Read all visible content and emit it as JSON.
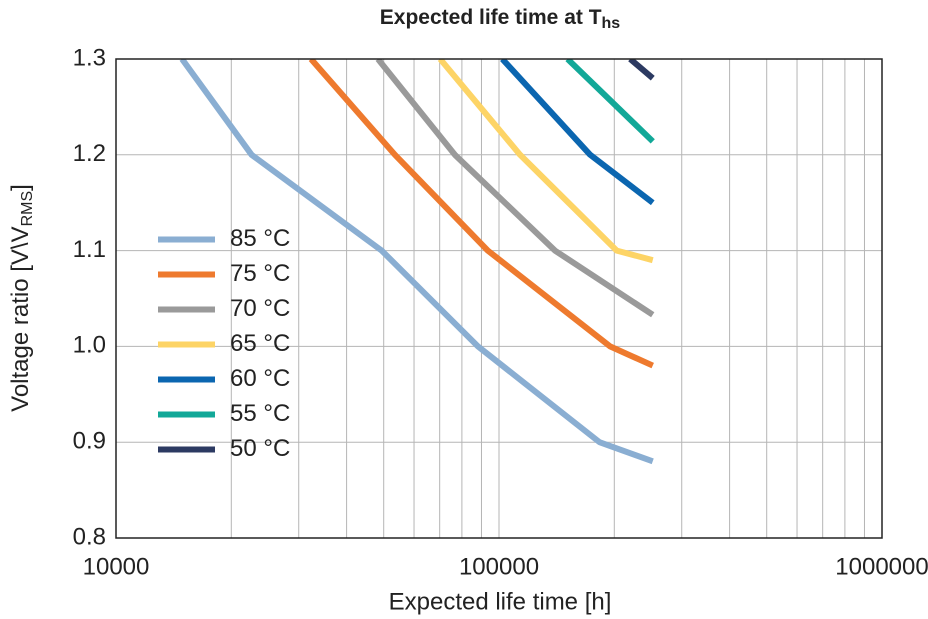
{
  "chart_data": {
    "type": "line",
    "title": "Expected life time at T",
    "title_subscript": "hs",
    "xlabel": "Expected life time [h]",
    "ylabel": "Voltage ratio [V\\V",
    "ylabel_subscript": "RMS",
    "ylabel_end": "]",
    "xscale": "log",
    "xlim": [
      10000,
      1000000
    ],
    "xticks": [
      10000,
      100000,
      1000000
    ],
    "xminor_grid": [
      20000,
      30000,
      40000,
      50000,
      60000,
      70000,
      80000,
      90000,
      200000,
      300000,
      400000,
      500000,
      600000,
      700000,
      800000,
      900000
    ],
    "ylim": [
      0.8,
      1.3
    ],
    "yticks": [
      0.8,
      0.9,
      {
        "value": 1,
        "label": "1.0"
      },
      1.1,
      1.2,
      1.3
    ],
    "grid": true,
    "legend": "center left",
    "series": [
      {
        "name": "85 °C",
        "color": "#8aaed2",
        "x": [
          14870,
          22600,
          49400,
          88100,
          183000,
          252000
        ],
        "values": [
          1.3,
          1.2,
          1.1,
          1.0,
          0.9,
          0.88
        ]
      },
      {
        "name": "75 °C",
        "color": "#ee7a2e",
        "x": [
          32300,
          53500,
          93500,
          195000,
          252000
        ],
        "values": [
          1.3,
          1.2,
          1.1,
          1.0,
          0.98
        ]
      },
      {
        "name": "70 °C",
        "color": "#9a9a9a",
        "x": [
          48300,
          76700,
          140000,
          252000
        ],
        "values": [
          1.3,
          1.2,
          1.1,
          1.033
        ]
      },
      {
        "name": "65 °C",
        "color": "#fdd466",
        "x": [
          70200,
          113500,
          203000,
          252000
        ],
        "values": [
          1.3,
          1.2,
          1.1,
          1.09
        ]
      },
      {
        "name": "60 °C",
        "color": "#0b66b0",
        "x": [
          102000,
          173000,
          252000
        ],
        "values": [
          1.3,
          1.2,
          1.15
        ]
      },
      {
        "name": "55 °C",
        "color": "#12a898",
        "x": [
          151000,
          252000
        ],
        "values": [
          1.3,
          1.214
        ]
      },
      {
        "name": "50 °C",
        "color": "#2c3a62",
        "x": [
          220000,
          252000
        ],
        "values": [
          1.3,
          1.28
        ]
      }
    ]
  }
}
